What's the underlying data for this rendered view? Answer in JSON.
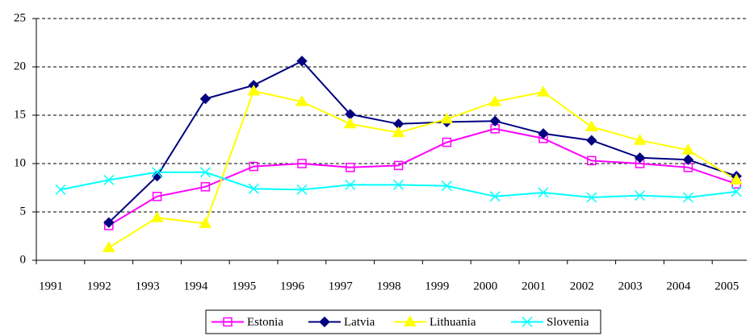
{
  "chart_data": {
    "type": "line",
    "categories": [
      "1991",
      "1992",
      "1993",
      "1994",
      "1995",
      "1996",
      "1997",
      "1998",
      "1999",
      "2000",
      "2001",
      "2002",
      "2003",
      "2004",
      "2005"
    ],
    "series": [
      {
        "name": "Estonia",
        "color": "#ff00ff",
        "marker": "square",
        "values": [
          null,
          3.6,
          6.6,
          7.6,
          9.7,
          10.0,
          9.6,
          9.8,
          12.2,
          13.6,
          12.6,
          10.3,
          10.0,
          9.6,
          7.9
        ]
      },
      {
        "name": "Latvia",
        "color": "#000080",
        "marker": "diamond",
        "values": [
          null,
          3.9,
          8.7,
          16.7,
          18.1,
          20.6,
          15.1,
          14.1,
          14.3,
          14.4,
          13.1,
          12.4,
          10.6,
          10.4,
          8.7
        ]
      },
      {
        "name": "Lithuania",
        "color": "#ffff00",
        "marker": "triangle",
        "values": [
          null,
          1.3,
          4.4,
          3.8,
          17.5,
          16.4,
          14.1,
          13.2,
          14.6,
          16.4,
          17.4,
          13.8,
          12.4,
          11.4,
          8.3
        ]
      },
      {
        "name": "Slovenia",
        "color": "#00ffff",
        "marker": "x",
        "values": [
          7.3,
          8.3,
          9.1,
          9.1,
          7.4,
          7.3,
          7.8,
          7.8,
          7.7,
          6.6,
          7.0,
          6.5,
          6.7,
          6.5,
          7.1
        ]
      }
    ],
    "ylim": [
      0,
      25
    ],
    "yticks": [
      0,
      5,
      10,
      15,
      20,
      25
    ],
    "grid": true,
    "legend": "bottom"
  }
}
